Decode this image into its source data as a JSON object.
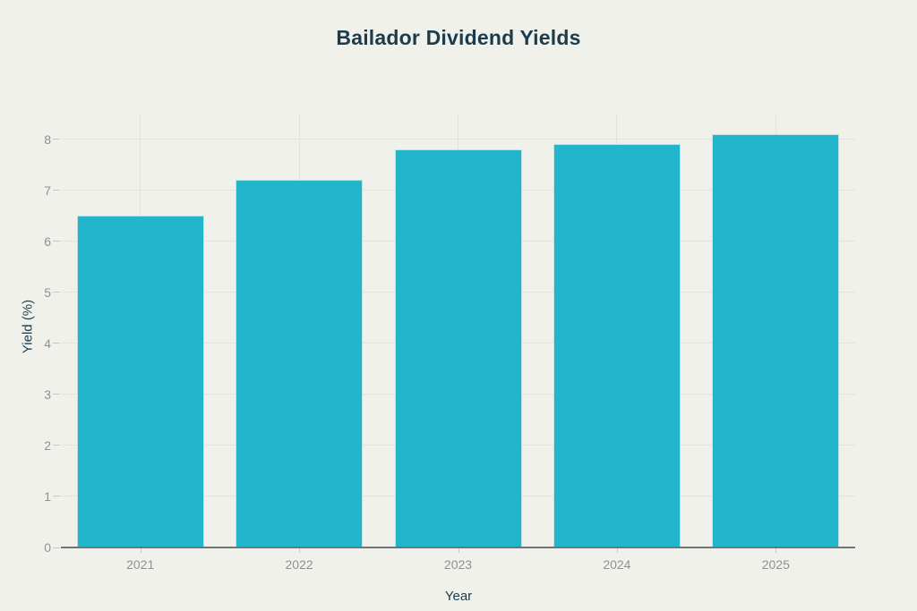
{
  "chart_data": {
    "type": "bar",
    "title": "Bailador Dividend Yields",
    "categories": [
      "2021",
      "2022",
      "2023",
      "2024",
      "2025"
    ],
    "values": [
      6.5,
      7.2,
      7.8,
      7.9,
      8.1
    ],
    "xlabel": "Year",
    "ylabel": "Yield (%)",
    "ylim": [
      0,
      8.5
    ],
    "yticks": [
      0,
      1,
      2,
      3,
      4,
      5,
      6,
      7,
      8
    ],
    "grid": true,
    "legend": false,
    "colors": {
      "background": "#f0f1eb",
      "bar": "#23b5cb",
      "title_text": "#1c3c4d",
      "axis_title_text": "#1c3c4d",
      "tick_text": "#8e9192",
      "gridline": "#e3e4dd",
      "axis_line": "#717374",
      "tick_mark": "#c6c9c3"
    }
  }
}
